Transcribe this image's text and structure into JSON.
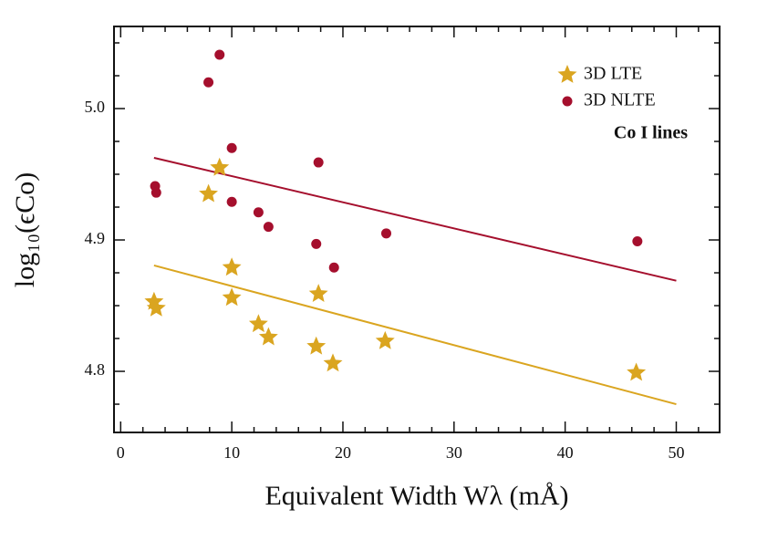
{
  "chart_data": {
    "type": "scatter",
    "xlabel": "Equivalent Width Wλ (mÅ)",
    "ylabel": "log₁₀(ϵCo)",
    "annotation": "Co I lines",
    "legend": "upper right",
    "xlim": [
      -0.6,
      53.9
    ],
    "ylim": [
      4.7535,
      5.0625
    ],
    "xticks": [
      0,
      10,
      20,
      30,
      40,
      50
    ],
    "yticks": [
      4.8,
      4.9,
      {
        "value": 5.0,
        "label": "5.0"
      }
    ],
    "xminorticks": [
      2,
      4,
      6,
      8,
      12,
      14,
      16,
      18,
      22,
      24,
      26,
      28,
      32,
      34,
      36,
      38,
      42,
      44,
      46,
      48,
      52
    ],
    "yminorticks": [
      4.775,
      4.825,
      4.85,
      4.875,
      4.925,
      4.95,
      4.975,
      5.025,
      5.05
    ],
    "series": [
      {
        "name": "3D LTE",
        "color": "#daa520",
        "marker": "star",
        "x": [
          3.0,
          3.2,
          7.9,
          8.9,
          10.0,
          10.0,
          12.4,
          13.3,
          17.6,
          17.8,
          19.1,
          23.8,
          46.4
        ],
        "values": [
          4.853,
          4.848,
          4.935,
          4.955,
          4.879,
          4.856,
          4.836,
          4.826,
          4.819,
          4.859,
          4.806,
          4.823,
          4.799
        ]
      },
      {
        "name": "3D NLTE",
        "color": "#a50f2d",
        "marker": "circle",
        "x": [
          3.1,
          3.2,
          7.9,
          8.9,
          10.0,
          10.0,
          12.4,
          13.3,
          17.6,
          17.8,
          19.2,
          23.9,
          46.5
        ],
        "values": [
          4.941,
          4.936,
          5.02,
          5.041,
          4.97,
          4.929,
          4.921,
          4.91,
          4.897,
          4.959,
          4.879,
          4.905,
          4.899
        ]
      }
    ],
    "fit_lines": [
      {
        "color": "#daa520",
        "x": [
          3,
          50
        ],
        "values": [
          4.8806,
          4.775
        ]
      },
      {
        "color": "#a50f2d",
        "x": [
          3,
          50
        ],
        "values": [
          4.9625,
          4.869
        ]
      }
    ]
  }
}
